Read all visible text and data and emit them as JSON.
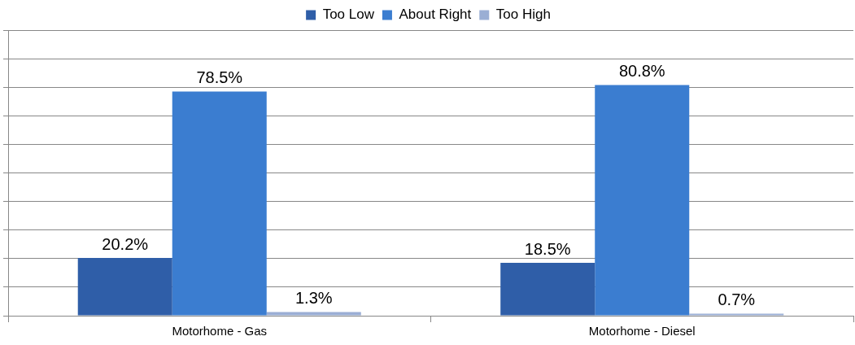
{
  "chart_data": {
    "type": "bar",
    "categories": [
      "Motorhome - Gas",
      "Motorhome - Diesel"
    ],
    "series": [
      {
        "name": "Too Low",
        "color": "#2f5ea8",
        "values": [
          20.2,
          18.5
        ],
        "value_labels": [
          "20.2%",
          "18.5%"
        ]
      },
      {
        "name": "About Right",
        "color": "#3b7dd0",
        "values": [
          78.5,
          80.8
        ],
        "value_labels": [
          "78.5%",
          "80.8%"
        ]
      },
      {
        "name": "Too High",
        "color": "#9aaed4",
        "values": [
          1.3,
          0.7
        ],
        "value_labels": [
          "1.3%",
          "0.7%"
        ]
      }
    ],
    "ylim": [
      0,
      100
    ],
    "yticks": [
      {
        "value": 0,
        "label": null
      },
      {
        "value": 10,
        "label": null
      },
      {
        "value": 20,
        "label": null
      },
      {
        "value": 30,
        "label": null
      },
      {
        "value": 40,
        "label": null
      },
      {
        "value": 50,
        "label": null
      },
      {
        "value": 60,
        "label": null
      },
      {
        "value": 70,
        "label": null
      },
      {
        "value": 80,
        "label": null
      },
      {
        "value": 90,
        "label": null
      },
      {
        "value": 100,
        "label": null
      }
    ],
    "tick_labels": "x",
    "grid": "y",
    "legend": "top"
  }
}
